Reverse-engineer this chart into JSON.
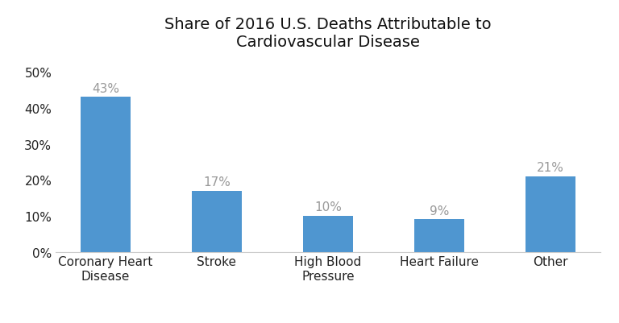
{
  "title": "Share of 2016 U.S. Deaths Attributable to\nCardiovascular Disease",
  "categories": [
    "Coronary Heart\nDisease",
    "Stroke",
    "High Blood\nPressure",
    "Heart Failure",
    "Other"
  ],
  "values": [
    43,
    17,
    10,
    9,
    21
  ],
  "labels": [
    "43%",
    "17%",
    "10%",
    "9%",
    "21%"
  ],
  "bar_color": "#4f96d0",
  "yticks": [
    0,
    10,
    20,
    30,
    40,
    50
  ],
  "ytick_labels": [
    "0%",
    "10%",
    "20%",
    "30%",
    "40%",
    "50%"
  ],
  "ylim": [
    0,
    54
  ],
  "background_color": "#ffffff",
  "title_fontsize": 14,
  "tick_fontsize": 11,
  "label_fontsize": 11,
  "bar_label_color": "#999999",
  "axis_label_color": "#222222",
  "bar_width": 0.45
}
